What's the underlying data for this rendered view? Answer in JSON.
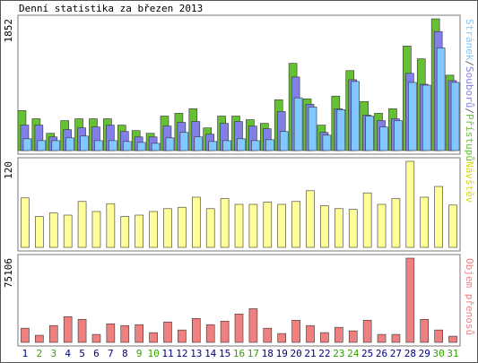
{
  "chart_data": [
    {
      "type": "bar",
      "title": "Denní statistika za březen 2013",
      "ylim": [
        0,
        1852
      ],
      "yticks": [
        1852
      ],
      "legend_separator": "/",
      "series": [
        {
          "name": "Stránek",
          "color": "#80c8ff",
          "values": [
            166,
            140,
            140,
            179,
            204,
            140,
            140,
            128,
            115,
            102,
            179,
            255,
            192,
            128,
            140,
            166,
            140,
            153,
            268,
            741,
            613,
            217,
            575,
            971,
            485,
            332,
            421,
            958,
            920,
            1443,
            958
          ]
        },
        {
          "name": "Souborů",
          "color": "#8080e8",
          "values": [
            358,
            358,
            192,
            294,
            319,
            332,
            358,
            268,
            192,
            192,
            345,
            396,
            409,
            230,
            383,
            409,
            345,
            307,
            549,
            1034,
            651,
            255,
            588,
            996,
            498,
            421,
            447,
            1086,
            932,
            1673,
            983
          ]
        },
        {
          "name": "Přístupů",
          "color": "#66c033",
          "values": [
            562,
            447,
            243,
            421,
            447,
            447,
            447,
            358,
            281,
            243,
            485,
            524,
            588,
            319,
            485,
            485,
            434,
            383,
            715,
            1226,
            728,
            358,
            766,
            1124,
            690,
            524,
            588,
            1469,
            1290,
            1852,
            1060
          ]
        }
      ]
    },
    {
      "type": "bar",
      "name": "Návštěv",
      "color": "#ffff99",
      "label_color": "#d8d800",
      "ylim": [
        0,
        120
      ],
      "yticks": [
        120
      ],
      "values": [
        69,
        43,
        48,
        45,
        64,
        50,
        61,
        43,
        45,
        50,
        54,
        56,
        70,
        54,
        68,
        60,
        60,
        63,
        60,
        64,
        79,
        58,
        54,
        53,
        76,
        60,
        68,
        120,
        70,
        85,
        59
      ]
    },
    {
      "type": "bar",
      "name": "Objem přenosů",
      "color": "#f08080",
      "label_color": "#f08080",
      "ylim": [
        0,
        75106
      ],
      "yticks": [
        75106
      ],
      "values": [
        12650,
        6325,
        15021,
        22927,
        20556,
        7115,
        16602,
        15021,
        15812,
        8697,
        18183,
        11068,
        21346,
        15812,
        18974,
        25299,
        30042,
        12650,
        7906,
        19765,
        15021,
        8697,
        13440,
        10278,
        19765,
        7115,
        7115,
        75106,
        20556,
        11068,
        5534
      ],
      "categories": [
        "1",
        "2",
        "3",
        "4",
        "5",
        "6",
        "7",
        "8",
        "9",
        "10",
        "11",
        "12",
        "13",
        "14",
        "15",
        "16",
        "17",
        "18",
        "19",
        "20",
        "21",
        "22",
        "23",
        "24",
        "25",
        "26",
        "27",
        "28",
        "29",
        "30",
        "31"
      ],
      "category_colors": [
        "#000080",
        "#33a000",
        "#33a000",
        "#000080",
        "#000080",
        "#000080",
        "#000080",
        "#000080",
        "#33a000",
        "#33a000",
        "#000080",
        "#000080",
        "#000080",
        "#000080",
        "#000080",
        "#33a000",
        "#33a000",
        "#000080",
        "#000080",
        "#000080",
        "#000080",
        "#000080",
        "#33a000",
        "#33a000",
        "#000080",
        "#000080",
        "#000080",
        "#000080",
        "#000080",
        "#33a000",
        "#33a000"
      ]
    }
  ]
}
